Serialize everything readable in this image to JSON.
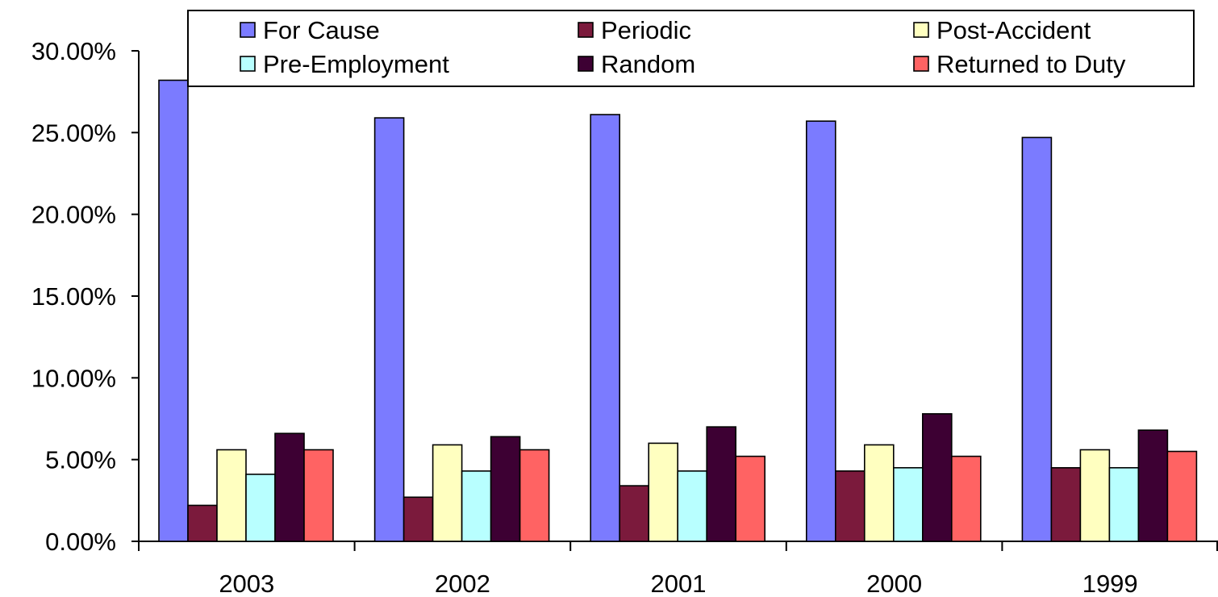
{
  "chart_data": {
    "type": "bar",
    "title": "",
    "xlabel": "",
    "ylabel": "",
    "categories": [
      "2003",
      "2002",
      "2001",
      "2000",
      "1999"
    ],
    "ylim": [
      0,
      30
    ],
    "yticks": [
      "0.00%",
      "5.00%",
      "10.00%",
      "15.00%",
      "20.00%",
      "25.00%",
      "30.00%"
    ],
    "legend_position": "top",
    "grid": false,
    "series": [
      {
        "name": "For Cause",
        "color": "#7b7bff",
        "values": [
          28.2,
          25.9,
          26.1,
          25.7,
          24.7
        ]
      },
      {
        "name": "Periodic",
        "color": "#7b1a3c",
        "values": [
          2.2,
          2.7,
          3.4,
          4.3,
          4.5
        ]
      },
      {
        "name": "Post-Accident",
        "color": "#ffffc0",
        "values": [
          5.6,
          5.9,
          6.0,
          5.9,
          5.6
        ]
      },
      {
        "name": "Pre-Employment",
        "color": "#b8ffff",
        "values": [
          4.1,
          4.3,
          4.3,
          4.5,
          4.5
        ]
      },
      {
        "name": "Random",
        "color": "#3d0033",
        "values": [
          6.6,
          6.4,
          7.0,
          7.8,
          6.8
        ]
      },
      {
        "name": "Returned to Duty",
        "color": "#ff6363",
        "values": [
          5.6,
          5.6,
          5.2,
          5.2,
          5.5
        ]
      }
    ]
  }
}
